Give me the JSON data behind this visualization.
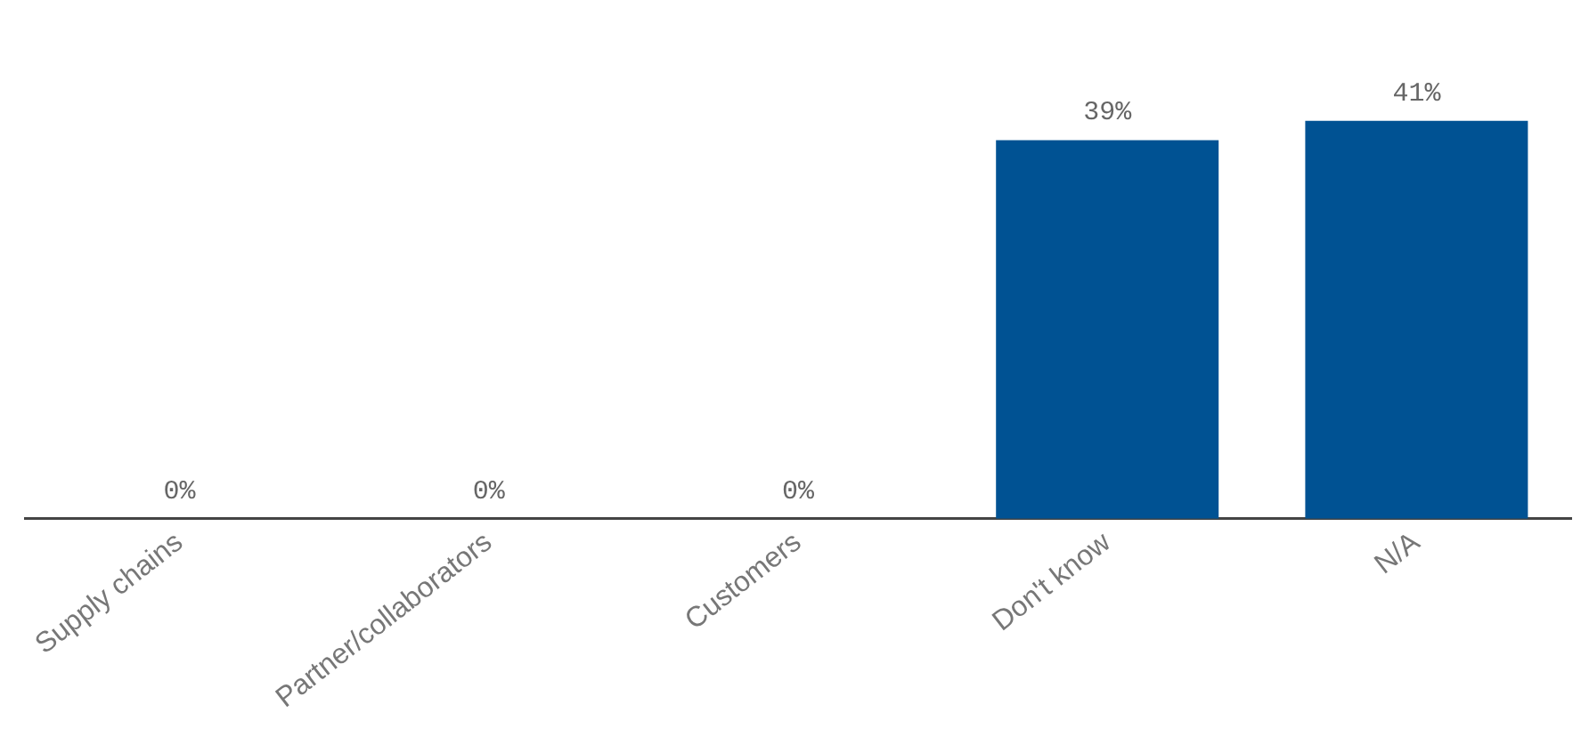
{
  "chart_data": {
    "type": "bar",
    "categories": [
      "Supply chains",
      "Partner/collaborators",
      "Customers",
      "Don't know",
      "N/A"
    ],
    "values": [
      0,
      0,
      0,
      39,
      41
    ],
    "color": "#005293",
    "value_labels": [
      "0%",
      "0%",
      "0%",
      "39%",
      "41%"
    ],
    "tick_labels": "x",
    "grid": false,
    "legend": false
  }
}
